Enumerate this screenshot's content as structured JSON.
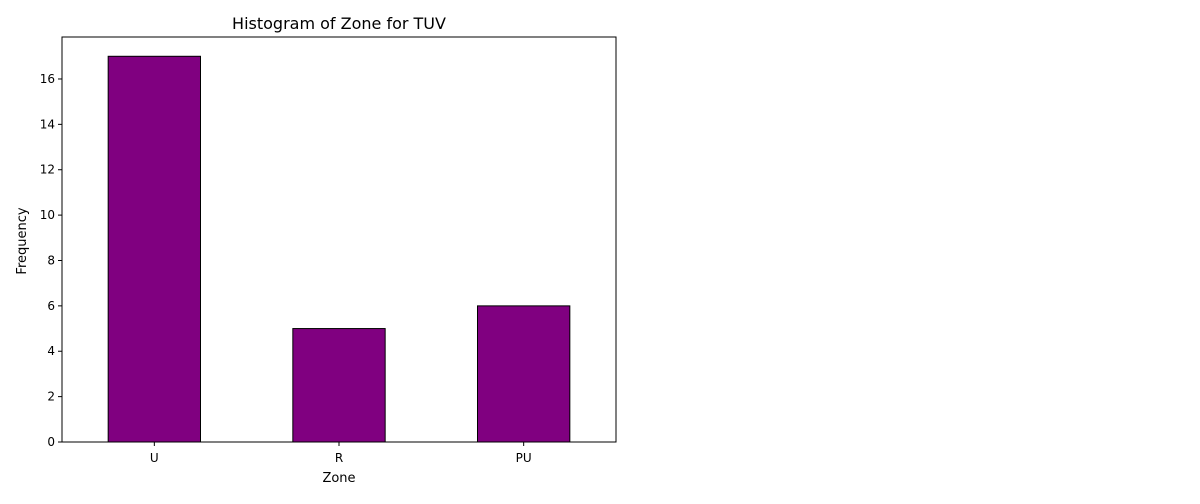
{
  "chart_data": {
    "type": "bar",
    "title": "Histogram of Zone for TUV",
    "xlabel": "Zone",
    "ylabel": "Frequency",
    "categories": [
      "U",
      "R",
      "PU"
    ],
    "values": [
      17,
      5,
      6
    ],
    "ylim": [
      0,
      17.85
    ],
    "yticks": [
      0,
      2,
      4,
      6,
      8,
      10,
      12,
      14,
      16
    ],
    "bar_color": "#800080",
    "bar_edge_color": "#000000",
    "grid": false,
    "legend": "none"
  }
}
